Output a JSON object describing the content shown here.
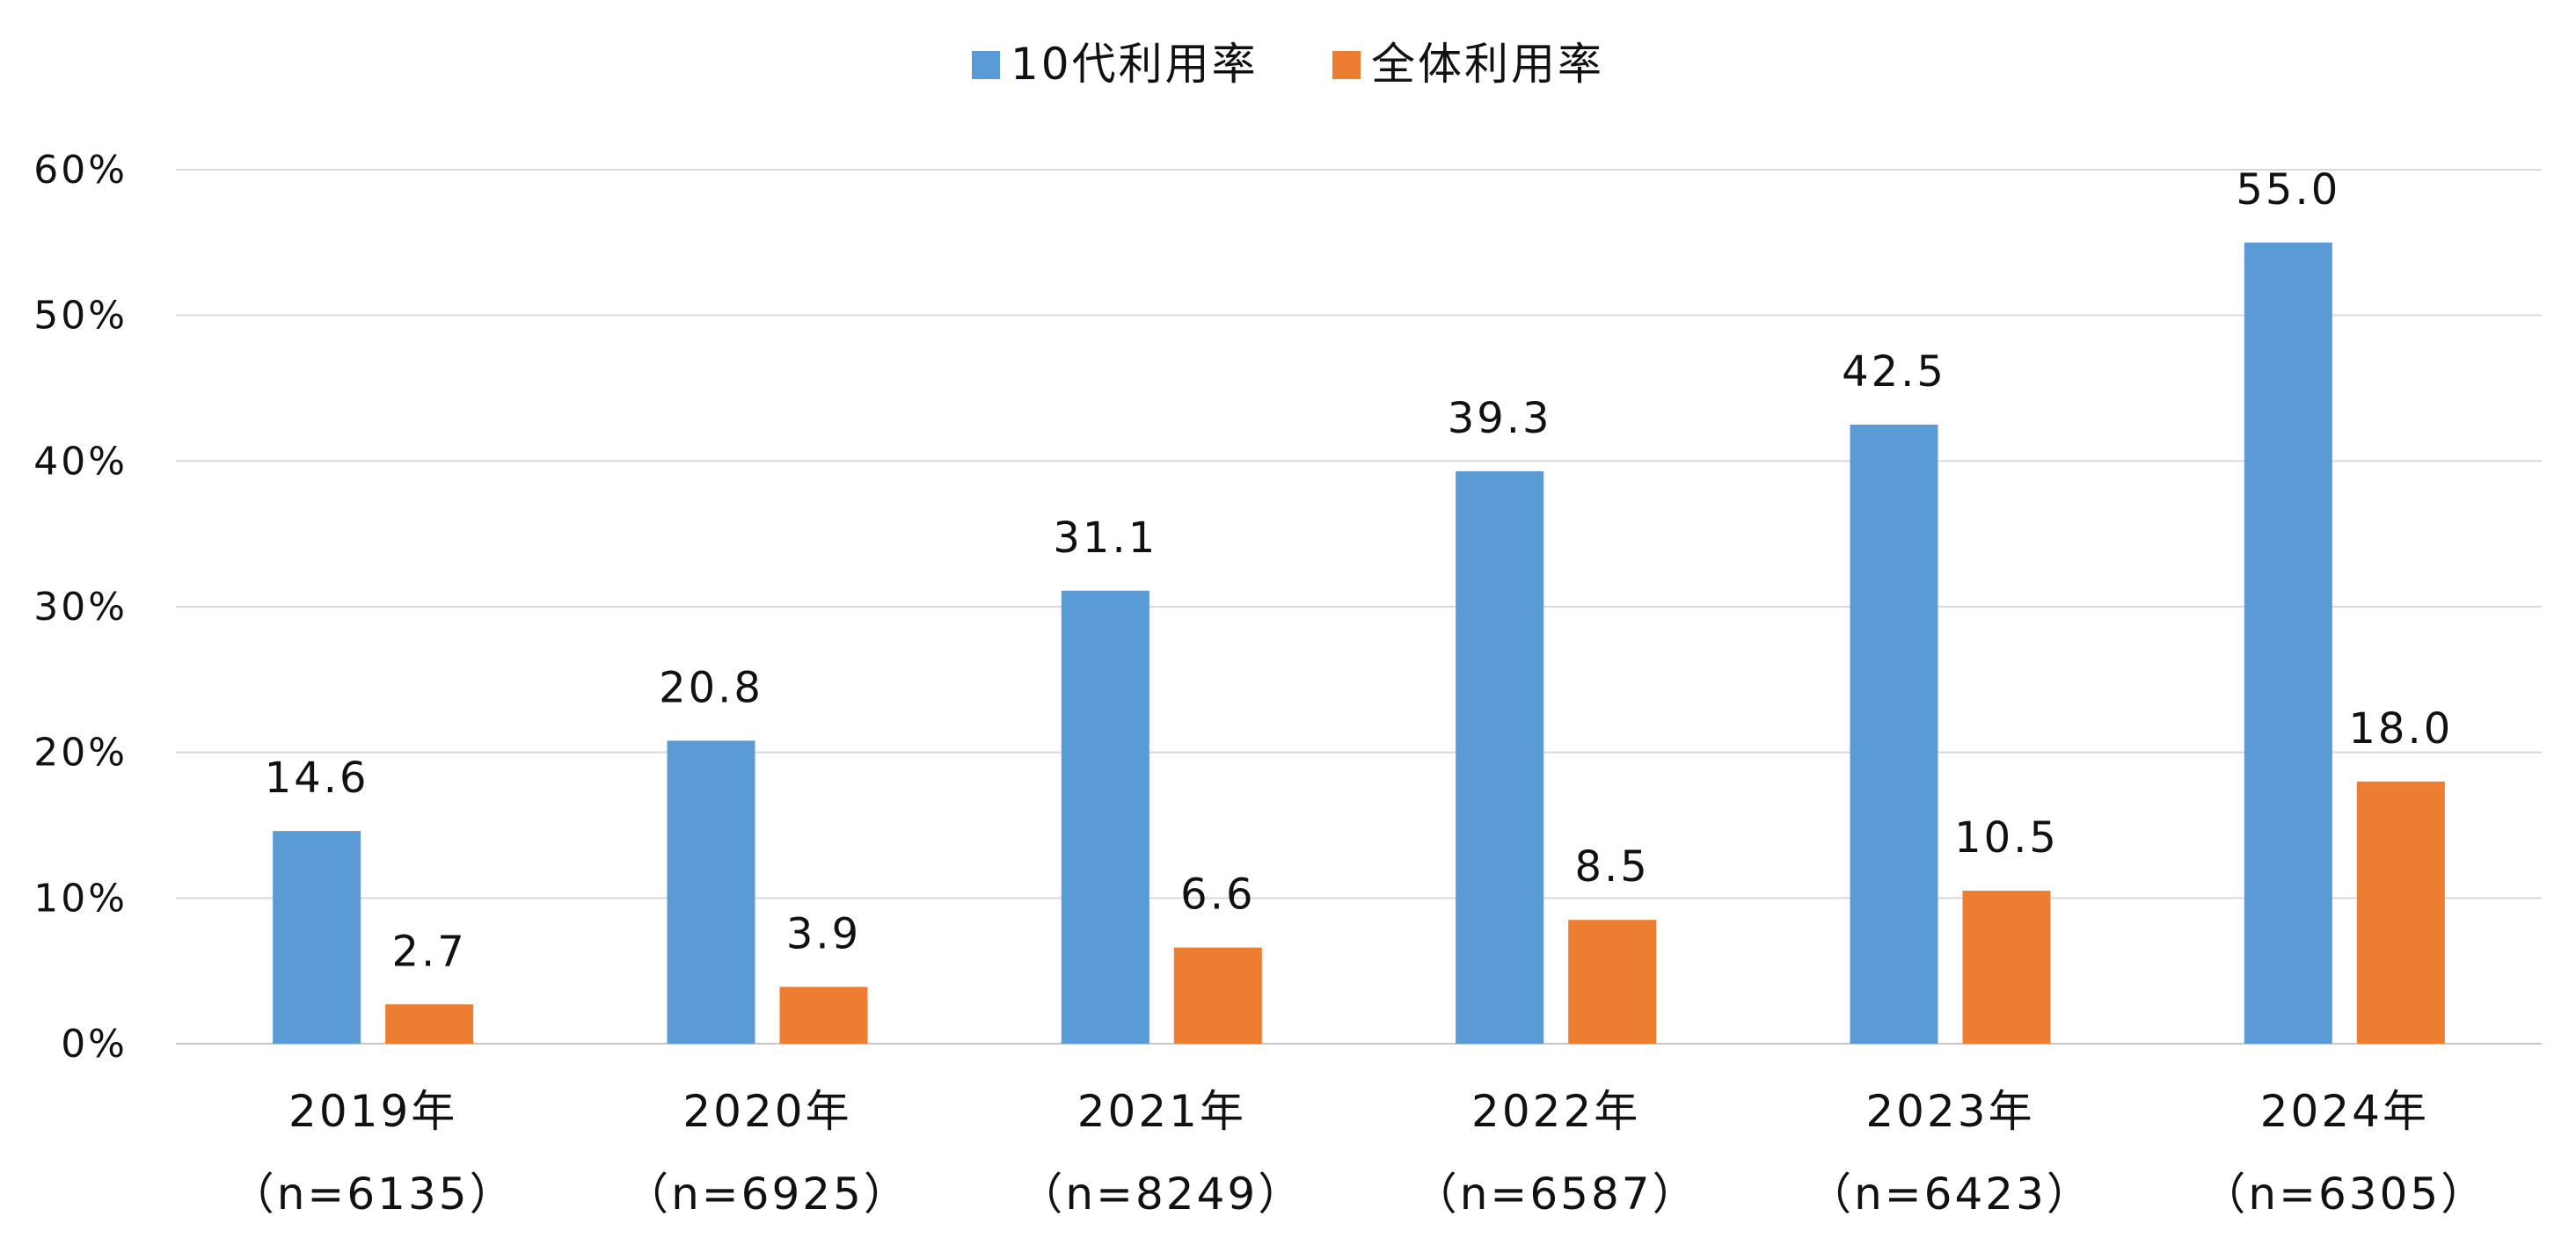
{
  "chart_data": {
    "type": "bar",
    "title": "",
    "xlabel": "",
    "ylabel": "",
    "ylim": [
      0,
      60
    ],
    "y_ticks": [
      "0%",
      "10%",
      "20%",
      "30%",
      "40%",
      "50%",
      "60%"
    ],
    "y_tick_values": [
      0,
      10,
      20,
      30,
      40,
      50,
      60
    ],
    "grid": true,
    "legend_position": "top-center",
    "categories": [
      {
        "year": "2019年",
        "n": "（n=6135）"
      },
      {
        "year": "2020年",
        "n": "（n=6925）"
      },
      {
        "year": "2021年",
        "n": "（n=8249）"
      },
      {
        "year": "2022年",
        "n": "（n=6587）"
      },
      {
        "year": "2023年",
        "n": "（n=6423）"
      },
      {
        "year": "2024年",
        "n": "（n=6305）"
      }
    ],
    "series": [
      {
        "name": "10代利用率",
        "color": "#5b9bd5",
        "values": [
          14.6,
          20.8,
          31.1,
          39.3,
          42.5,
          55.0
        ],
        "labels": [
          "14.6",
          "20.8",
          "31.1",
          "39.3",
          "42.5",
          "55.0"
        ]
      },
      {
        "name": "全体利用率",
        "color": "#ed7d31",
        "values": [
          2.7,
          3.9,
          6.6,
          8.5,
          10.5,
          18.0
        ],
        "labels": [
          "2.7",
          "3.9",
          "6.6",
          "8.5",
          "10.5",
          "18.0"
        ]
      }
    ]
  }
}
